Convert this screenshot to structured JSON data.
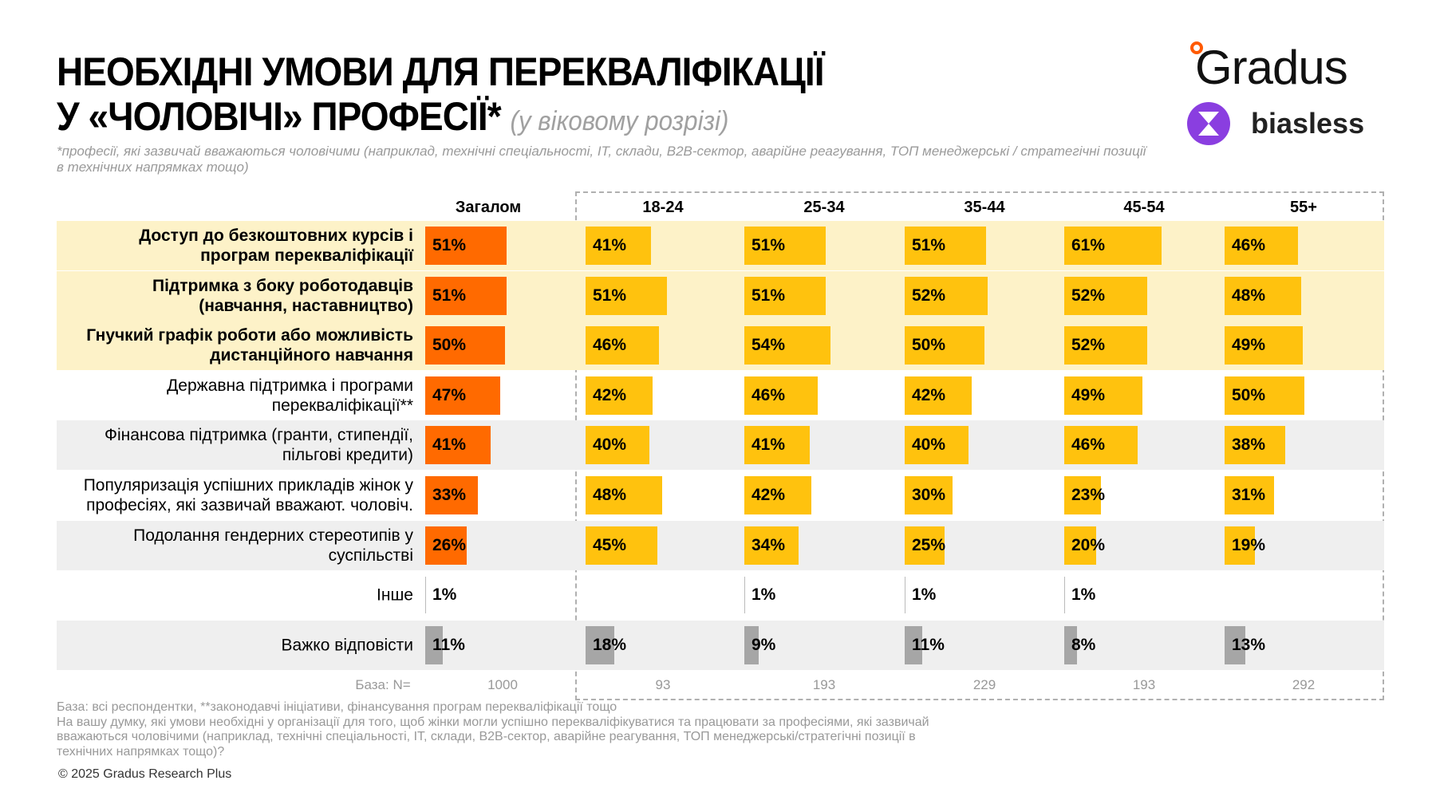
{
  "title": {
    "line1": "НЕОБХІДНІ УМОВИ ДЛЯ ПЕРЕКВАЛІФІКАЦІЇ",
    "line2": "У «ЧОЛОВІЧІ» ПРОФЕСІЇ*",
    "subtitle": "(у віковому розрізі)"
  },
  "note": "*професії, які зазвичай вважаються чоловічими (наприклад, технічні спеціальності, ІТ, склади, B2B-сектор, аварійне реагування, ТОП менеджерські / стратегічні позиції в технічних напрямках тощо)",
  "logos": {
    "gradus": "Gradus",
    "biasless": "biasless"
  },
  "colors": {
    "total": "#ff6a00",
    "age": "#ffc20e",
    "hard": "#a6a6a6",
    "highlight_bg": "#fdf2c8",
    "alt_bg": "#efefef"
  },
  "chart_data": {
    "type": "bar",
    "columns": [
      "Загалом",
      "18-24",
      "25-34",
      "35-44",
      "45-54",
      "55+"
    ],
    "categories": [
      "Доступ до безкоштовних курсів і\nпрограм перекваліфікації",
      "Підтримка з боку роботодавців\n(навчання, наставництво)",
      "Гнучкий графік роботи або можливість\nдистанційного навчання",
      "Державна підтримка і програми\nперекваліфікації**",
      "Фінансова підтримка (гранти, стипендії,\nпільгові кредити)",
      "Популяризація успішних прикладів жінок у\nпрофесіях, які зазвичай вважают. чоловіч.",
      "Подолання гендерних стереотипів у\nсуспільстві",
      "Інше",
      "Важко відповісти"
    ],
    "highlighted_rows": [
      0,
      1,
      2
    ],
    "values": [
      [
        51,
        41,
        51,
        51,
        61,
        46
      ],
      [
        51,
        51,
        51,
        52,
        52,
        48
      ],
      [
        50,
        46,
        54,
        50,
        52,
        49
      ],
      [
        47,
        42,
        46,
        42,
        49,
        50
      ],
      [
        41,
        40,
        41,
        40,
        46,
        38
      ],
      [
        33,
        48,
        42,
        30,
        23,
        31
      ],
      [
        26,
        45,
        34,
        25,
        20,
        19
      ],
      [
        1,
        null,
        1,
        1,
        1,
        null
      ],
      [
        11,
        18,
        9,
        11,
        8,
        13
      ]
    ],
    "unit": "%",
    "base_label": "База: N=",
    "base": [
      1000,
      93,
      193,
      229,
      193,
      292
    ]
  },
  "footnote": {
    "line1": "База: всі респондентки, **законодавчі ініціативи, фінансування програм перекваліфікації тощо",
    "line2": "На вашу думку, які умови необхідні у організації для того, щоб жінки могли успішно перекваліфікуватися та працювати за професіями, які зазвичай вважаються чоловічими (наприклад, технічні спеціальності, ІТ, склади, B2B-сектор, аварійне реагування, ТОП менеджерські/стратегічні позиції в технічних напрямках тощо)?"
  },
  "copyright": "© 2025 Gradus Research Plus"
}
